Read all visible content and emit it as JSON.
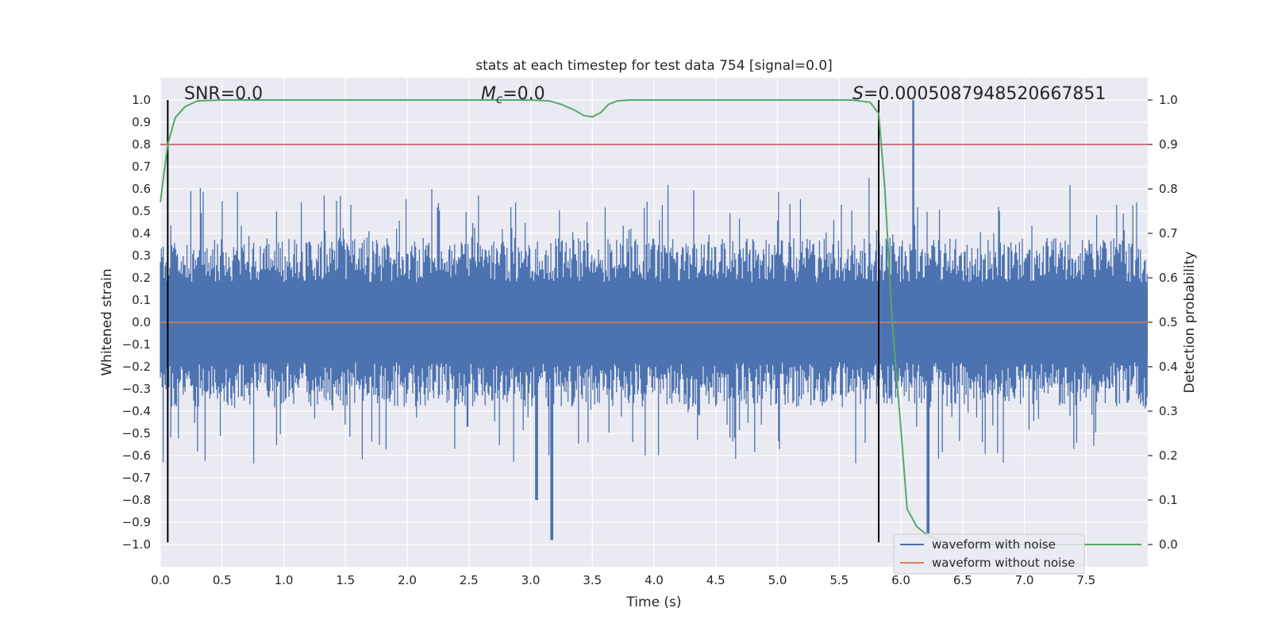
{
  "chart_data": {
    "type": "line",
    "title": "stats at each timestep for test data 754 [signal=0.0]",
    "xlabel": "Time (s)",
    "ylabel": "Whitened strain",
    "y2label": "Detection probability",
    "xlim": [
      0.0,
      8.0
    ],
    "ylim": [
      -1.1,
      1.1
    ],
    "y2lim": [
      -0.05,
      1.05
    ],
    "xticks": [
      "0.0",
      "0.5",
      "1.0",
      "1.5",
      "2.0",
      "2.5",
      "3.0",
      "3.5",
      "4.0",
      "4.5",
      "5.0",
      "5.5",
      "6.0",
      "6.5",
      "7.0",
      "7.5"
    ],
    "yticks": [
      "1.0",
      "0.9",
      "0.8",
      "0.7",
      "0.6",
      "0.5",
      "0.4",
      "0.3",
      "0.2",
      "0.1",
      "0.0",
      "−0.1",
      "−0.2",
      "−0.3",
      "−0.4",
      "−0.5",
      "−0.6",
      "−0.7",
      "−0.8",
      "−0.9",
      "−1.0"
    ],
    "y2ticks": [
      "1.0",
      "0.9",
      "0.8",
      "0.7",
      "0.6",
      "0.5",
      "0.4",
      "0.3",
      "0.2",
      "0.1",
      "0.0"
    ],
    "annotations": {
      "snr": "SNR=0.0",
      "mc_symbol": "M",
      "mc_sub": "c",
      "mc_value": "=0.0",
      "s_symbol": "S",
      "s_value": "=0.0005087948520667851"
    },
    "threshold_line": {
      "y": 0.8,
      "color": "#c44e52"
    },
    "vertical_markers": [
      0.06,
      5.82
    ],
    "series": [
      {
        "name": "waveform with noise",
        "color": "#4c72b0",
        "description": "dense whitened noise strain, roughly within ±0.4 with spikes to ±0.7 (max ~1.0 at 6.1 s, min ~-0.98 at 3.17 s)"
      },
      {
        "name": "waveform without noise",
        "color": "#dd8452",
        "values_constant": 0.0
      },
      {
        "name": "detection probability",
        "color": "#55a868",
        "axis": "right",
        "x": [
          0.0,
          0.06,
          0.12,
          0.2,
          0.3,
          0.5,
          1.0,
          2.0,
          3.0,
          3.15,
          3.25,
          3.35,
          3.43,
          3.5,
          3.57,
          3.63,
          3.7,
          3.8,
          4.5,
          5.0,
          5.6,
          5.75,
          5.82,
          5.87,
          5.93,
          6.0,
          6.05,
          6.13,
          6.22,
          6.4,
          7.0,
          7.95
        ],
        "y": [
          0.77,
          0.9,
          0.96,
          0.985,
          0.998,
          1.0,
          1.0,
          1.0,
          1.0,
          0.998,
          0.99,
          0.978,
          0.965,
          0.962,
          0.972,
          0.99,
          0.998,
          1.0,
          1.0,
          1.0,
          1.0,
          0.995,
          0.97,
          0.8,
          0.5,
          0.26,
          0.08,
          0.04,
          0.02,
          0.0,
          0.0,
          0.0
        ]
      }
    ],
    "legend": {
      "placement": "lower-right",
      "entries": [
        "waveform with noise",
        "waveform without noise"
      ]
    },
    "grid": true
  }
}
